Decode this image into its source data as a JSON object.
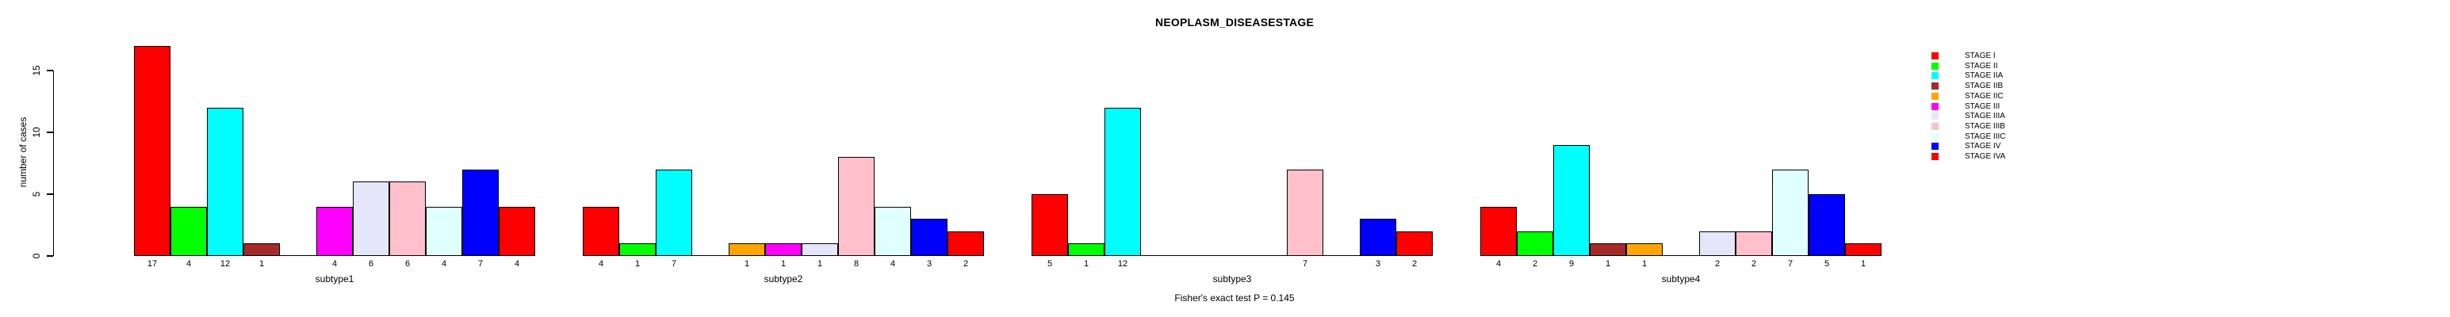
{
  "chart_data": {
    "type": "bar",
    "title": "NEOPLASM_DISEASESTAGE",
    "ylabel": "number of cases",
    "xlabel": "",
    "annotation": "Fisher's exact test P = 0.145",
    "categories": [
      "subtype1",
      "subtype2",
      "subtype3",
      "subtype4"
    ],
    "yticks": [
      0,
      5,
      10,
      15
    ],
    "ylim": [
      0,
      17
    ],
    "grid": false,
    "legend_position": "right-outside",
    "bar_value_labels": true,
    "zero_bars_drawn_as_baseline_segments": true,
    "series": [
      {
        "name": "STAGE I",
        "color": "#FF0000",
        "values": [
          17,
          4,
          5,
          4
        ]
      },
      {
        "name": "STAGE II",
        "color": "#00FF00",
        "values": [
          4,
          1,
          1,
          2
        ]
      },
      {
        "name": "STAGE IIA",
        "color": "#00FFFF",
        "values": [
          12,
          7,
          12,
          9
        ]
      },
      {
        "name": "STAGE IIB",
        "color": "#A52A2A",
        "values": [
          1,
          0,
          0,
          1
        ]
      },
      {
        "name": "STAGE IIC",
        "color": "#FFA500",
        "values": [
          0,
          1,
          0,
          1
        ]
      },
      {
        "name": "STAGE III",
        "color": "#FF00FF",
        "values": [
          4,
          1,
          0,
          0
        ]
      },
      {
        "name": "STAGE IIIA",
        "color": "#E6E6FA",
        "values": [
          6,
          1,
          0,
          2
        ]
      },
      {
        "name": "STAGE IIIB",
        "color": "#FFC0CB",
        "values": [
          6,
          8,
          7,
          2
        ]
      },
      {
        "name": "STAGE IIIC",
        "color": "#E0FFFF",
        "values": [
          4,
          4,
          0,
          7
        ]
      },
      {
        "name": "STAGE IV",
        "color": "#0000FF",
        "values": [
          7,
          3,
          3,
          5
        ]
      },
      {
        "name": "STAGE IVA",
        "color": "#FF0000",
        "values": [
          4,
          2,
          2,
          1
        ]
      }
    ]
  }
}
